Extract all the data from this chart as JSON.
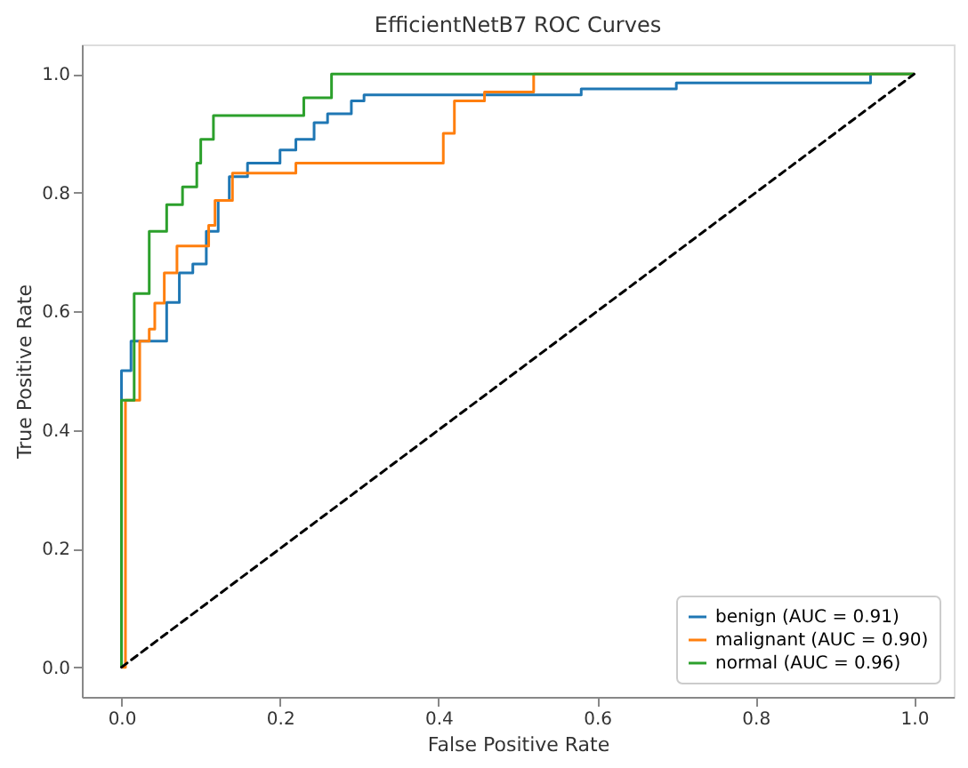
{
  "chart_data": {
    "type": "line",
    "title": "EfficientNetB7 ROC Curves",
    "xlabel": "False Positive Rate",
    "ylabel": "True Positive Rate",
    "xlim": [
      -0.05,
      1.05
    ],
    "ylim": [
      -0.05,
      1.05
    ],
    "xticks": [
      {
        "value": 0,
        "label": "0.0"
      },
      {
        "value": 0.2,
        "label": "0.2"
      },
      {
        "value": 0.4,
        "label": "0.4"
      },
      {
        "value": 0.6,
        "label": "0.6"
      },
      {
        "value": 0.8,
        "label": "0.8"
      },
      {
        "value": 1,
        "label": "1.0"
      }
    ],
    "yticks": [
      {
        "value": 0,
        "label": "0.0"
      },
      {
        "value": 0.2,
        "label": "0.2"
      },
      {
        "value": 0.4,
        "label": "0.4"
      },
      {
        "value": 0.6,
        "label": "0.6"
      },
      {
        "value": 0.8,
        "label": "0.8"
      },
      {
        "value": 1,
        "label": "1.0"
      }
    ],
    "grid": false,
    "legend": "bottom right",
    "line_style": "solid",
    "marker": "none",
    "series": [
      {
        "name": "benign (AUC = 0.91)",
        "color": "#1f77b4",
        "x": [
          0,
          0,
          0,
          0.012,
          0.012,
          0.057,
          0.057,
          0.073,
          0.073,
          0.09,
          0.09,
          0.107,
          0.107,
          0.122,
          0.122,
          0.136,
          0.136,
          0.159,
          0.159,
          0.2,
          0.2,
          0.22,
          0.22,
          0.243,
          0.243,
          0.26,
          0.26,
          0.29,
          0.29,
          0.306,
          0.306,
          0.58,
          0.58,
          0.7,
          0.7,
          0.945,
          0.945,
          1
        ],
        "values": [
          0,
          0.37,
          0.5,
          0.5,
          0.55,
          0.55,
          0.615,
          0.615,
          0.665,
          0.665,
          0.68,
          0.68,
          0.735,
          0.735,
          0.787,
          0.787,
          0.827,
          0.827,
          0.85,
          0.85,
          0.872,
          0.872,
          0.89,
          0.89,
          0.918,
          0.918,
          0.933,
          0.933,
          0.955,
          0.955,
          0.965,
          0.965,
          0.975,
          0.975,
          0.985,
          0.985,
          1,
          1
        ]
      },
      {
        "name": "malignant (AUC = 0.90)",
        "color": "#ff7f0e",
        "x": [
          0,
          0.005,
          0.005,
          0.005,
          0.023,
          0.023,
          0.035,
          0.035,
          0.042,
          0.042,
          0.054,
          0.054,
          0.07,
          0.07,
          0.11,
          0.11,
          0.118,
          0.118,
          0.14,
          0.14,
          0.22,
          0.22,
          0.406,
          0.406,
          0.42,
          0.42,
          0.458,
          0.458,
          0.52,
          0.52,
          1
        ],
        "values": [
          0,
          0,
          0.21,
          0.45,
          0.45,
          0.55,
          0.55,
          0.57,
          0.57,
          0.614,
          0.614,
          0.665,
          0.665,
          0.71,
          0.71,
          0.745,
          0.745,
          0.787,
          0.787,
          0.833,
          0.833,
          0.85,
          0.85,
          0.9,
          0.9,
          0.955,
          0.955,
          0.97,
          0.97,
          1,
          1
        ]
      },
      {
        "name": "normal (AUC = 0.96)",
        "color": "#2ca02c",
        "x": [
          0,
          0,
          0.016,
          0.016,
          0.035,
          0.035,
          0.057,
          0.057,
          0.077,
          0.077,
          0.095,
          0.095,
          0.1,
          0.1,
          0.116,
          0.116,
          0.23,
          0.23,
          0.265,
          0.265,
          1
        ],
        "values": [
          0,
          0.45,
          0.45,
          0.63,
          0.63,
          0.735,
          0.735,
          0.78,
          0.78,
          0.81,
          0.81,
          0.85,
          0.85,
          0.89,
          0.89,
          0.93,
          0.93,
          0.96,
          0.96,
          1,
          1
        ]
      },
      {
        "color": "#000000",
        "line_style": "dashed",
        "x": [
          0,
          1
        ],
        "values": [
          0,
          1
        ]
      }
    ]
  }
}
